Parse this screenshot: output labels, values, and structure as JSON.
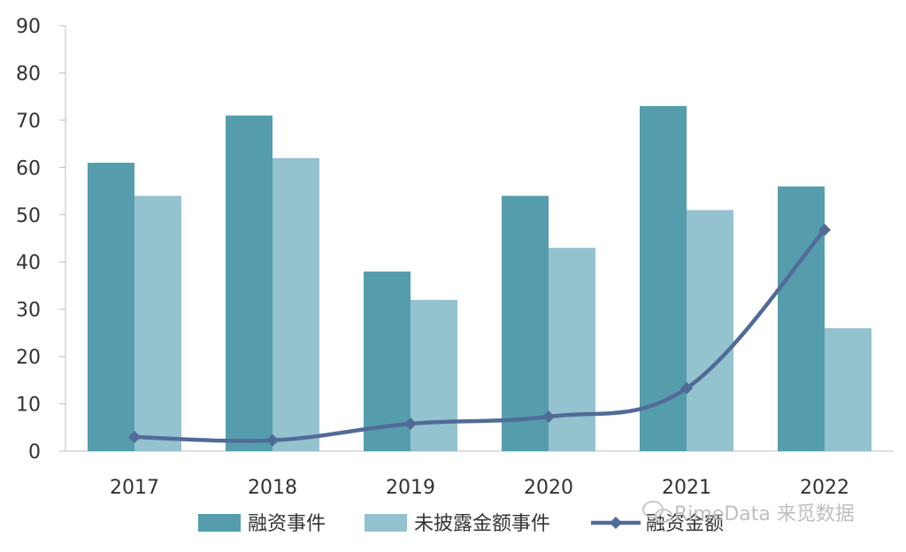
{
  "chart_data": {
    "type": "bar",
    "categories": [
      "2017",
      "2018",
      "2019",
      "2020",
      "2021",
      "2022"
    ],
    "series": [
      {
        "name": "融资事件",
        "type": "bar",
        "color": "#559DAD",
        "values": [
          61,
          71,
          38,
          54,
          73,
          56
        ]
      },
      {
        "name": "未披露金额事件",
        "type": "bar",
        "color": "#94C2CE",
        "values": [
          54,
          62,
          32,
          43,
          51,
          26
        ]
      },
      {
        "name": "融资金额",
        "type": "line",
        "color": "#516B97",
        "values": [
          3,
          2.3,
          5.8,
          7.3,
          13.3,
          46.8
        ]
      }
    ],
    "ylim": [
      0,
      90
    ],
    "yticks": [
      0,
      10,
      20,
      30,
      40,
      50,
      60,
      70,
      80,
      90
    ],
    "grid": false,
    "legend_position": "bottom",
    "title": "",
    "xlabel": "",
    "ylabel": ""
  },
  "watermark": {
    "icon": "wechat-icon",
    "text": "RimeData 来觅数据"
  }
}
